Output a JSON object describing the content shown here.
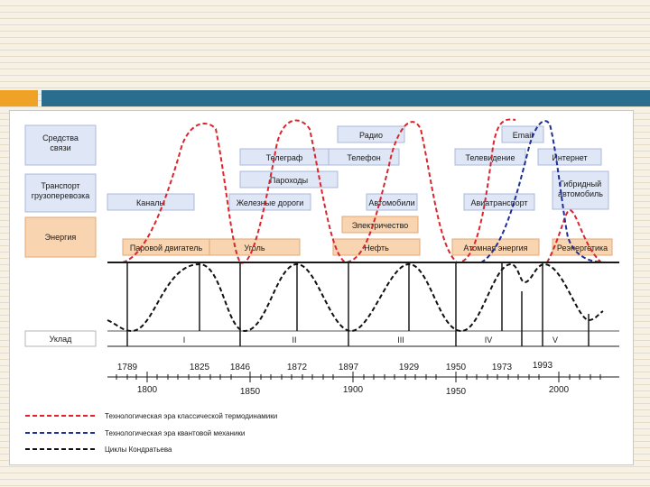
{
  "categories": {
    "communication": "Средства связи",
    "transport": "Транспорт грузоперевозка",
    "energy": "Энергия",
    "mode": "Уклад"
  },
  "communication_labels": [
    "Телеграф",
    "Телефон",
    "Радио",
    "Email",
    "Телевидение",
    "Интернет"
  ],
  "transport_labels": [
    "Каналы",
    "Пароходы",
    "Железные дороги",
    "Автомобили",
    "Авиатранспорт",
    "Гибридный автомобиль"
  ],
  "energy_labels": [
    "Паровой двигатель",
    "Уголь",
    "Электричество",
    "Нефть",
    "Атомная энергия",
    "Реэнергетика"
  ],
  "modes": [
    "I",
    "II",
    "III",
    "IV",
    "V"
  ],
  "years_upper": [
    "1789",
    "1825",
    "1846",
    "1872",
    "1897",
    "1929",
    "1950",
    "1973",
    "1993"
  ],
  "years_lower": [
    "1800",
    "1850",
    "1900",
    "1950",
    "2000"
  ],
  "legend": [
    {
      "text": "Технологическая эра классической термодинамики",
      "color": "#d8262e"
    },
    {
      "text": "Технологическая эра квантовой механики",
      "color": "#1f2f96"
    },
    {
      "text": "Циклы Кондратьева",
      "color": "#111111"
    }
  ],
  "colors": {
    "box_blue": "#dfe6f5",
    "box_blue_border": "#a8b8dc",
    "box_orange": "#f8d4b0",
    "box_orange_border": "#e2a777",
    "accent_orange": "#f0a226",
    "accent_teal": "#2b6d8c"
  }
}
